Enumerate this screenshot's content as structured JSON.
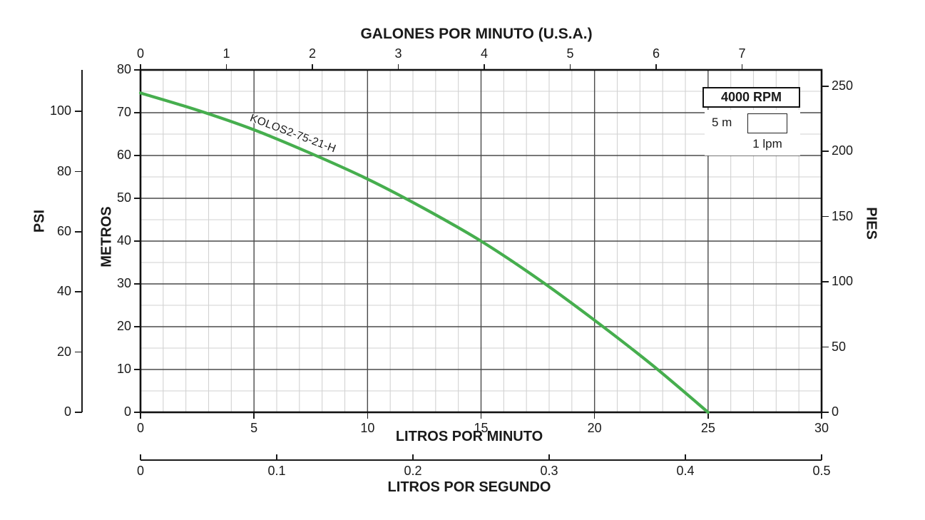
{
  "chart_data": {
    "type": "line",
    "title": "GALONES POR MINUTO (U.S.A.)",
    "axes": {
      "gpm": {
        "title": "GALONES POR MINUTO (U.S.A.)",
        "ticks": [
          0,
          1,
          2,
          3,
          4,
          5,
          6,
          7
        ],
        "position": "top"
      },
      "psi": {
        "title": "PSI",
        "ticks": [
          0,
          20,
          40,
          60,
          80,
          100
        ],
        "position": "outer-left"
      },
      "metros": {
        "title": "METROS",
        "ticks": [
          0,
          10,
          20,
          30,
          40,
          50,
          60,
          70,
          80
        ],
        "range": [
          0,
          80
        ],
        "position": "left"
      },
      "pies": {
        "title": "PIES",
        "ticks": [
          0,
          50,
          100,
          150,
          200,
          250
        ],
        "position": "right"
      },
      "lpm": {
        "title": "LITROS POR MINUTO",
        "ticks": [
          0,
          5,
          10,
          15,
          20,
          25,
          30
        ],
        "range": [
          0,
          30
        ],
        "position": "bottom"
      },
      "lps": {
        "title": "LITROS POR SEGUNDO",
        "ticks": [
          0,
          0.1,
          0.2,
          0.3,
          0.4,
          0.5
        ],
        "position": "outer-bottom"
      }
    },
    "grid": {
      "minor_lpm": 1,
      "major_lpm": 5,
      "minor_m": 5,
      "major_m": 10,
      "grid_on": true
    },
    "series": [
      {
        "name": "KOLOS2-75-21-H",
        "color": "#46ae4e",
        "x_unit": "lpm",
        "y_unit": "m",
        "points": [
          [
            0,
            74.6
          ],
          [
            2.5,
            70.6
          ],
          [
            5,
            66
          ],
          [
            7.5,
            60.5
          ],
          [
            10,
            54.5
          ],
          [
            12.5,
            47.6
          ],
          [
            15,
            40
          ],
          [
            17.5,
            31.2
          ],
          [
            20,
            21.5
          ],
          [
            22.5,
            11.2
          ],
          [
            25,
            0
          ]
        ]
      }
    ],
    "legend": {
      "rpm": "4000 RPM",
      "cell_height": "5 m",
      "cell_width": "1 lpm"
    }
  },
  "colors": {
    "curve": "#46ae4e",
    "grid_major": "#4a4a4a",
    "grid_minor": "#d2d2d2",
    "axis": "#1a1a1a",
    "text": "#1a1a1a",
    "background": "#ffffff"
  }
}
